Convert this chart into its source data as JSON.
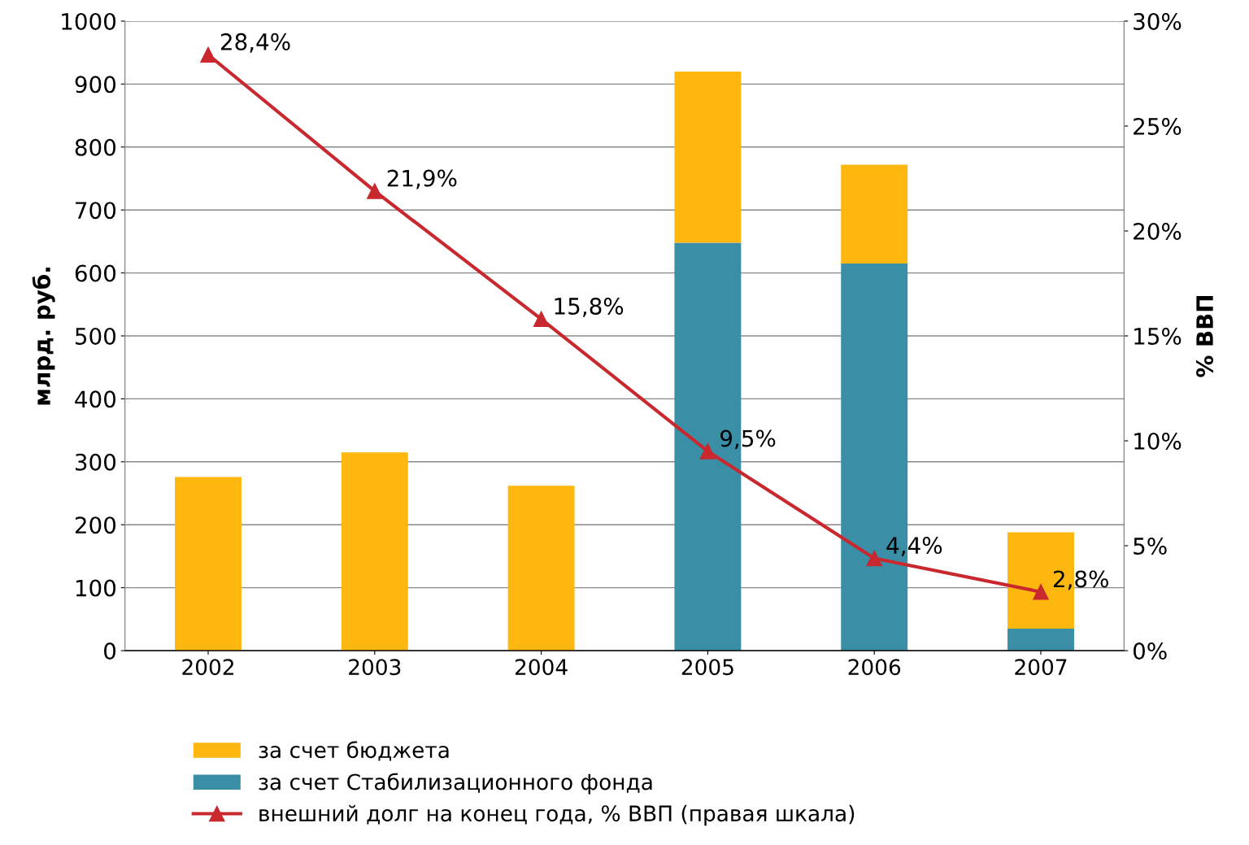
{
  "chart_data": {
    "type": "bar",
    "stacked": true,
    "categories": [
      "2002",
      "2003",
      "2004",
      "2005",
      "2006",
      "2007"
    ],
    "series": [
      {
        "name": "за счет Стабилизационного фонда",
        "color": "#3a8fa6",
        "values": [
          0,
          0,
          0,
          648,
          615,
          35
        ]
      },
      {
        "name": "за счет бюджета",
        "color": "#fdb70f",
        "values": [
          276,
          315,
          262,
          272,
          157,
          153
        ]
      },
      {
        "name": "внешний долг на конец года, % ВВП (правая шкала)",
        "type": "line",
        "axis": "y2",
        "color": "#c8282e",
        "marker": "triangle",
        "values": [
          28.4,
          21.9,
          15.8,
          9.5,
          4.4,
          2.8
        ],
        "value_labels": [
          "28,4%",
          "21,9%",
          "15,8%",
          "9,5%",
          "4,4%",
          "2,8%"
        ]
      }
    ],
    "ylabel": "млрд. руб.",
    "y2label": "% ВВП",
    "ylim": [
      0,
      1000
    ],
    "yticks": [
      0,
      100,
      200,
      300,
      400,
      500,
      600,
      700,
      800,
      900,
      1000
    ],
    "y2lim": [
      0,
      30
    ],
    "y2ticks": [
      {
        "value": 0,
        "label": "0%"
      },
      {
        "value": 5,
        "label": "5%"
      },
      {
        "value": 10,
        "label": "10%"
      },
      {
        "value": 15,
        "label": "15%"
      },
      {
        "value": 20,
        "label": "20%"
      },
      {
        "value": 25,
        "label": "25%"
      },
      {
        "value": 30,
        "label": "30%"
      }
    ],
    "grid": "y",
    "legend": "bottom"
  }
}
